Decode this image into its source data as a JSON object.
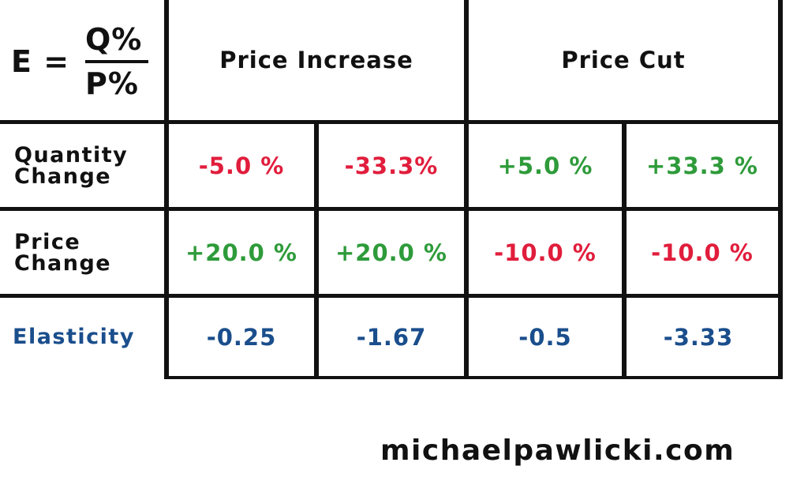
{
  "formula": {
    "lhs": "E =",
    "numerator": "Q%",
    "denominator": "P%"
  },
  "headers": {
    "price_increase": "Price Increase",
    "price_cut": "Price Cut"
  },
  "rows": [
    {
      "label_line1": "Quantity",
      "label_line2": "Change",
      "values": [
        "-5.0 %",
        "-33.3%",
        "+5.0 %",
        "+33.3 %"
      ]
    },
    {
      "label_line1": "Price",
      "label_line2": "Change",
      "values": [
        "+20.0 %",
        "+20.0 %",
        "-10.0 %",
        "-10.0 %"
      ]
    },
    {
      "label": "Elasticity",
      "values": [
        "-0.25",
        "-1.67",
        "-0.5",
        "-3.33"
      ]
    }
  ],
  "colors": {
    "negative": "#e11d3c",
    "positive": "#2e9b3a",
    "elasticity": "#1a4e8c",
    "grid": "#111111"
  },
  "footer": "michaelpawlicki.com"
}
